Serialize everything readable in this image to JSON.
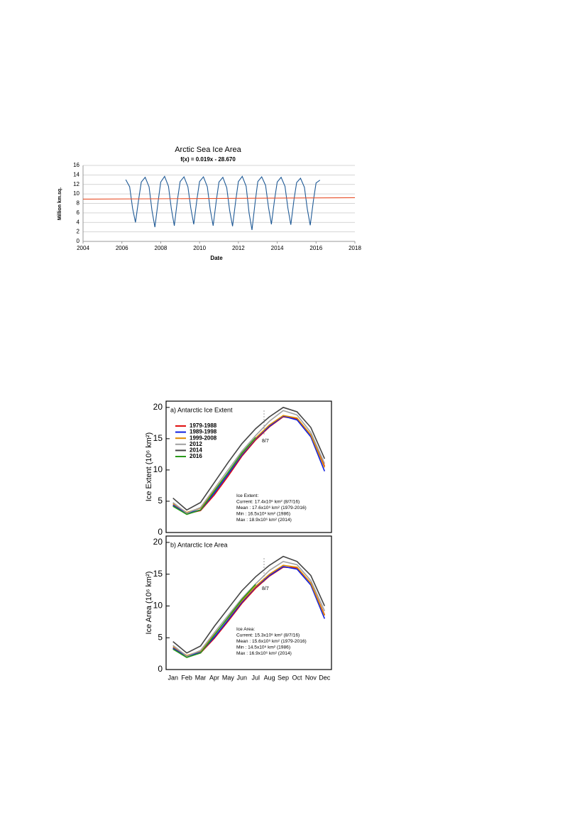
{
  "chart_data": [
    {
      "type": "line",
      "title": "Arctic Sea Ice Area",
      "subtitle": "f(x) = 0.019x - 28.670",
      "xlabel": "Date",
      "ylabel": "Million km.sq.",
      "xlim": [
        2004,
        2018
      ],
      "xticks": [
        2004,
        2006,
        2008,
        2010,
        2012,
        2014,
        2016,
        2018
      ],
      "ylim": [
        0,
        16
      ],
      "yticks": [
        0,
        2,
        4,
        6,
        8,
        10,
        12,
        14,
        16
      ],
      "grid": true,
      "series": [
        {
          "color": "#1f5a96",
          "x": [
            2006.2,
            2006.4,
            2006.55,
            2006.7,
            2006.87,
            2007.0,
            2007.2,
            2007.4,
            2007.55,
            2007.7,
            2007.87,
            2008.0,
            2008.2,
            2008.4,
            2008.55,
            2008.7,
            2008.87,
            2009.0,
            2009.2,
            2009.4,
            2009.55,
            2009.7,
            2009.87,
            2010.0,
            2010.2,
            2010.4,
            2010.55,
            2010.7,
            2010.87,
            2011.0,
            2011.2,
            2011.4,
            2011.55,
            2011.7,
            2011.87,
            2012.0,
            2012.2,
            2012.4,
            2012.55,
            2012.7,
            2012.87,
            2013.0,
            2013.2,
            2013.4,
            2013.55,
            2013.7,
            2013.87,
            2014.0,
            2014.2,
            2014.4,
            2014.55,
            2014.7,
            2014.87,
            2015.0,
            2015.2,
            2015.4,
            2015.55,
            2015.7,
            2015.87,
            2016.0,
            2016.2
          ],
          "values": [
            13.0,
            11.5,
            7.0,
            4.0,
            9.0,
            12.5,
            13.5,
            11.5,
            6.5,
            3.0,
            8.5,
            12.5,
            13.7,
            11.6,
            6.8,
            3.3,
            9.0,
            12.6,
            13.6,
            11.5,
            7.0,
            3.6,
            9.0,
            12.6,
            13.6,
            11.5,
            6.7,
            3.3,
            8.8,
            12.5,
            13.5,
            11.3,
            6.5,
            3.2,
            8.8,
            12.6,
            13.7,
            11.6,
            6.0,
            2.4,
            8.5,
            12.6,
            13.6,
            11.8,
            7.2,
            3.6,
            9.0,
            12.5,
            13.5,
            11.6,
            7.0,
            3.5,
            9.0,
            12.4,
            13.3,
            11.4,
            6.8,
            3.4,
            8.8,
            12.3,
            12.9
          ]
        },
        {
          "color": "#e8502a",
          "x": [
            2004,
            2018
          ],
          "values": [
            8.9,
            9.2
          ]
        }
      ]
    },
    {
      "type": "line",
      "title": "a) Antarctic Ice Extent",
      "ylabel": "Ice Extent (10⁶ km²)",
      "ylim": [
        0,
        21
      ],
      "yticks": [
        0,
        5,
        10,
        15,
        20
      ],
      "marker_label": "8/7",
      "annotations": [
        "Ice Extent:",
        "Current: 17.4x10⁶ km² (8/7/16)",
        "Mean   : 17.6x10⁶ km² (1979-2016)",
        "Min     : 16.5x10⁶ km² (1986)",
        "Max    : 18.9x10⁶ km² (2014)"
      ],
      "series": [
        {
          "name": "1979-1988",
          "color": "#e01010",
          "values": [
            4.3,
            3.0,
            3.5,
            6.0,
            9.0,
            12.2,
            14.8,
            16.9,
            18.5,
            18.2,
            15.6,
            10.6
          ]
        },
        {
          "name": "1989-1998",
          "color": "#1020e0",
          "values": [
            4.4,
            3.1,
            3.6,
            6.3,
            9.3,
            12.4,
            15.0,
            17.0,
            18.6,
            18.0,
            15.3,
            9.8
          ]
        },
        {
          "name": "1999-2008",
          "color": "#e08a00",
          "values": [
            4.6,
            3.2,
            3.9,
            6.7,
            9.6,
            12.6,
            15.1,
            17.2,
            18.7,
            18.3,
            15.6,
            10.4
          ]
        },
        {
          "name": "2012",
          "color": "#a0a0a0",
          "values": [
            4.8,
            3.1,
            4.0,
            7.0,
            10.0,
            13.0,
            15.5,
            17.8,
            19.5,
            18.8,
            16.0,
            11.0
          ]
        },
        {
          "name": "2014",
          "color": "#444444",
          "values": [
            5.5,
            3.6,
            4.8,
            8.0,
            11.2,
            14.2,
            16.6,
            18.5,
            20.0,
            19.3,
            16.8,
            11.8
          ]
        },
        {
          "name": "2016",
          "color": "#2a9a1a",
          "values": [
            4.2,
            2.9,
            3.6,
            6.6,
            9.6,
            12.7,
            15.2,
            null,
            null,
            null,
            null,
            null
          ]
        }
      ]
    },
    {
      "type": "line",
      "title": "b) Antarctic Ice Area",
      "ylabel": "Ice Area (10⁶ km²)",
      "categories": [
        "Jan",
        "Feb",
        "Mar",
        "Apr",
        "May",
        "Jun",
        "Jul",
        "Aug",
        "Sep",
        "Oct",
        "Nov",
        "Dec"
      ],
      "ylim": [
        0,
        21
      ],
      "yticks": [
        0,
        5,
        10,
        15,
        20
      ],
      "marker_label": "8/7",
      "annotations": [
        "Ice Area:",
        "Current: 15.3x10⁶ km² (8/7/16)",
        "Mean   : 15.6x10⁶ km² (1979-2016)",
        "Min     : 14.5x10⁶ km² (1986)",
        "Max    : 16.9x10⁶ km² (2014)"
      ],
      "series": [
        {
          "color": "#e01010",
          "values": [
            3.3,
            2.0,
            2.6,
            4.9,
            7.6,
            10.4,
            12.8,
            14.7,
            16.1,
            16.0,
            13.6,
            8.6
          ]
        },
        {
          "color": "#1020e0",
          "values": [
            3.4,
            2.1,
            2.7,
            5.1,
            7.8,
            10.6,
            13.0,
            14.8,
            16.2,
            15.8,
            13.3,
            8.0
          ]
        },
        {
          "color": "#e08a00",
          "values": [
            3.6,
            2.2,
            2.9,
            5.5,
            8.1,
            10.8,
            13.1,
            15.0,
            16.4,
            16.1,
            13.6,
            8.5
          ]
        },
        {
          "color": "#a0a0a0",
          "values": [
            3.8,
            2.1,
            3.0,
            5.8,
            8.5,
            11.2,
            13.5,
            15.6,
            17.0,
            16.5,
            14.0,
            9.2
          ]
        },
        {
          "color": "#444444",
          "values": [
            4.4,
            2.6,
            3.7,
            6.8,
            9.6,
            12.4,
            14.6,
            16.4,
            17.8,
            17.0,
            14.8,
            10.0
          ]
        },
        {
          "color": "#2a9a1a",
          "values": [
            3.2,
            1.9,
            2.6,
            5.4,
            8.2,
            11.0,
            13.4,
            null,
            null,
            null,
            null,
            null
          ]
        }
      ]
    }
  ]
}
